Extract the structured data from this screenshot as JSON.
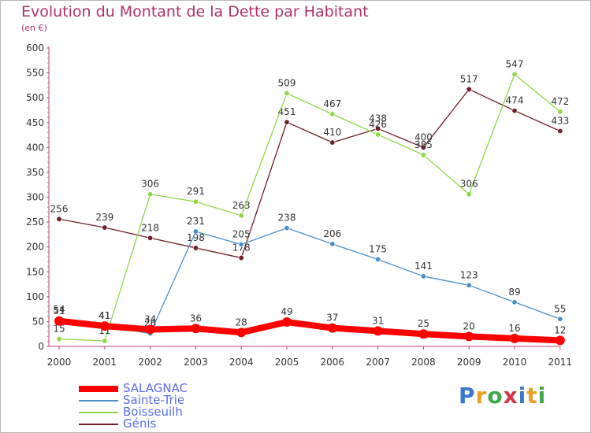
{
  "header": {
    "title": "Evolution du Montant de la Dette par Habitant",
    "subtitle": "(en €)"
  },
  "logo": {
    "text": "Proxiti",
    "colors": [
      "#3c78c8",
      "#e8a020",
      "#40a848",
      "#d03848",
      "#3c78c8",
      "#e8a020",
      "#40a848"
    ]
  },
  "chart_data": {
    "type": "line",
    "x": [
      "2000",
      "2001",
      "2002",
      "2003",
      "2004",
      "2005",
      "2006",
      "2007",
      "2008",
      "2009",
      "2010",
      "2011"
    ],
    "ylim": [
      0,
      600
    ],
    "yticks": [
      0,
      50,
      100,
      150,
      200,
      250,
      300,
      350,
      400,
      450,
      500,
      550,
      600
    ],
    "grid": false,
    "legend_position": "bottom-left",
    "series": [
      {
        "name": "Génis",
        "color": "#702028",
        "values": [
          256,
          239,
          218,
          198,
          178,
          451,
          410,
          438,
          400,
          517,
          474,
          433
        ]
      },
      {
        "name": "Boisseuilh",
        "color": "#90d848",
        "values": [
          15,
          11,
          306,
          291,
          263,
          509,
          467,
          426,
          385,
          306,
          547,
          472
        ]
      },
      {
        "name": "Sainte-Trie",
        "color": "#4c90cc",
        "values": [
          54,
          41,
          26,
          231,
          205,
          238,
          206,
          175,
          141,
          123,
          89,
          55
        ]
      },
      {
        "name": "SALAGNAC",
        "color": "#ff0000",
        "values": [
          51,
          41,
          34,
          36,
          28,
          49,
          37,
          31,
          25,
          20,
          16,
          12
        ]
      }
    ],
    "legend": [
      "SALAGNAC",
      "Sainte-Trie",
      "Boisseuilh",
      "Génis"
    ]
  }
}
